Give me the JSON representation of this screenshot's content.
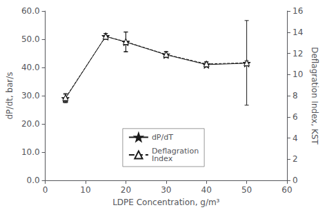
{
  "chart_data": {
    "type": "line",
    "x": [
      5,
      15,
      20,
      30,
      40,
      50
    ],
    "xlabel": "LDPE Concentration, g/m³",
    "ylabel": "dP/dt, bar/s",
    "y2label": "Deflagration Index, KST",
    "xlim": [
      0,
      60
    ],
    "xticks": [
      0,
      10,
      20,
      30,
      40,
      50,
      60
    ],
    "ylim": [
      0.0,
      60.0
    ],
    "yticks": [
      {
        "value": 0,
        "label": "0.0"
      },
      {
        "value": 10,
        "label": "10.0"
      },
      {
        "value": 20,
        "label": "20.0"
      },
      {
        "value": 30,
        "label": "30.0"
      },
      {
        "value": 40,
        "label": "40.0"
      },
      {
        "value": 50,
        "label": "50.0"
      },
      {
        "value": 60,
        "label": "60.0"
      }
    ],
    "y2lim": [
      0,
      16
    ],
    "y2ticks": [
      0,
      2,
      4,
      6,
      8,
      10,
      12,
      14,
      16
    ],
    "grid": false,
    "legend": "lower center",
    "series": [
      {
        "name": "dP/dT",
        "color": "#1a1a1a",
        "marker": "star",
        "line_style": "solid",
        "values": [
          29.0,
          51.0,
          49.0,
          44.5,
          41.0,
          41.5
        ],
        "errors": [
          1.5,
          1.0,
          3.5,
          1.0,
          0.8,
          0.8
        ]
      },
      {
        "name": "Deflagration\nIndex",
        "color": "#1a1a1a",
        "marker": "triangle",
        "line_style": "dashed",
        "axis": "y2",
        "values": [
          7.8,
          13.6,
          13.1,
          11.9,
          11.0,
          11.1
        ],
        "errors": [
          0.4,
          0.27,
          0.93,
          0.27,
          0.21,
          4.0
        ]
      }
    ]
  }
}
